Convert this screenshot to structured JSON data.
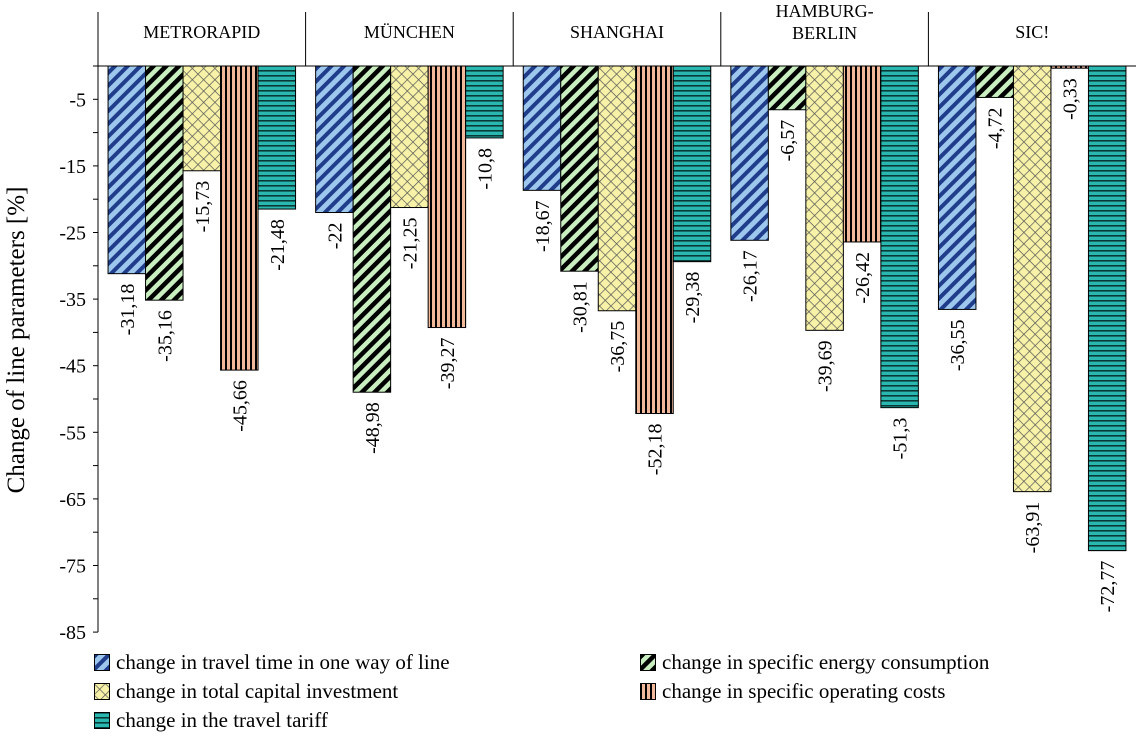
{
  "chart_data": {
    "type": "bar",
    "ylabel": "Change of line parameters [%]",
    "ylim": [
      -85,
      0
    ],
    "yticks": [
      -5,
      -15,
      -25,
      -35,
      -45,
      -55,
      -65,
      -75,
      -85
    ],
    "categories": [
      [
        "METRORAPID"
      ],
      [
        "MÜNCHEN"
      ],
      [
        "SHANGHAI"
      ],
      [
        "HAMBURG-",
        "BERLIN"
      ],
      [
        "SIC!"
      ]
    ],
    "series": [
      {
        "name": "change in travel time in one way of  line",
        "color": "#9ec7ee",
        "pattern": "diag-blue",
        "values": [
          -31.18,
          -22,
          -18.67,
          -26.17,
          -36.55
        ],
        "labels": [
          "-31,18",
          "-22",
          "-18,67",
          "-26,17",
          "-36,55"
        ]
      },
      {
        "name": "change in specific energy consumption",
        "color": "#c9efc0",
        "pattern": "diag-green",
        "values": [
          -35.16,
          -48.98,
          -30.81,
          -6.57,
          -4.72
        ],
        "labels": [
          "-35,16",
          "-48,98",
          "-30,81",
          "-6,57",
          "-4,72"
        ]
      },
      {
        "name": "change in total capital investment",
        "color": "#f7f2a8",
        "pattern": "cross-yellow",
        "values": [
          -15.73,
          -21.25,
          -36.75,
          -39.69,
          -63.91
        ],
        "labels": [
          "-15,73",
          "-21,25",
          "-36,75",
          "-39,69",
          "-63,91"
        ]
      },
      {
        "name": "change in specific operating costs",
        "color": "#f2b89a",
        "pattern": "vert-orange",
        "values": [
          -45.66,
          -39.27,
          -52.18,
          -26.42,
          -0.33
        ],
        "labels": [
          "-45,66",
          "-39,27",
          "-52,18",
          "-26,42",
          "-0,33"
        ]
      },
      {
        "name": "change in the travel tariff",
        "color": "#2ab7b0",
        "pattern": "horiz-teal",
        "values": [
          -21.48,
          -10.8,
          -29.38,
          -51.3,
          -72.77
        ],
        "labels": [
          "-21,48",
          "-10,8",
          "-29,38",
          "-51,3",
          "-72,77"
        ]
      }
    ],
    "legend_position": "bottom"
  }
}
